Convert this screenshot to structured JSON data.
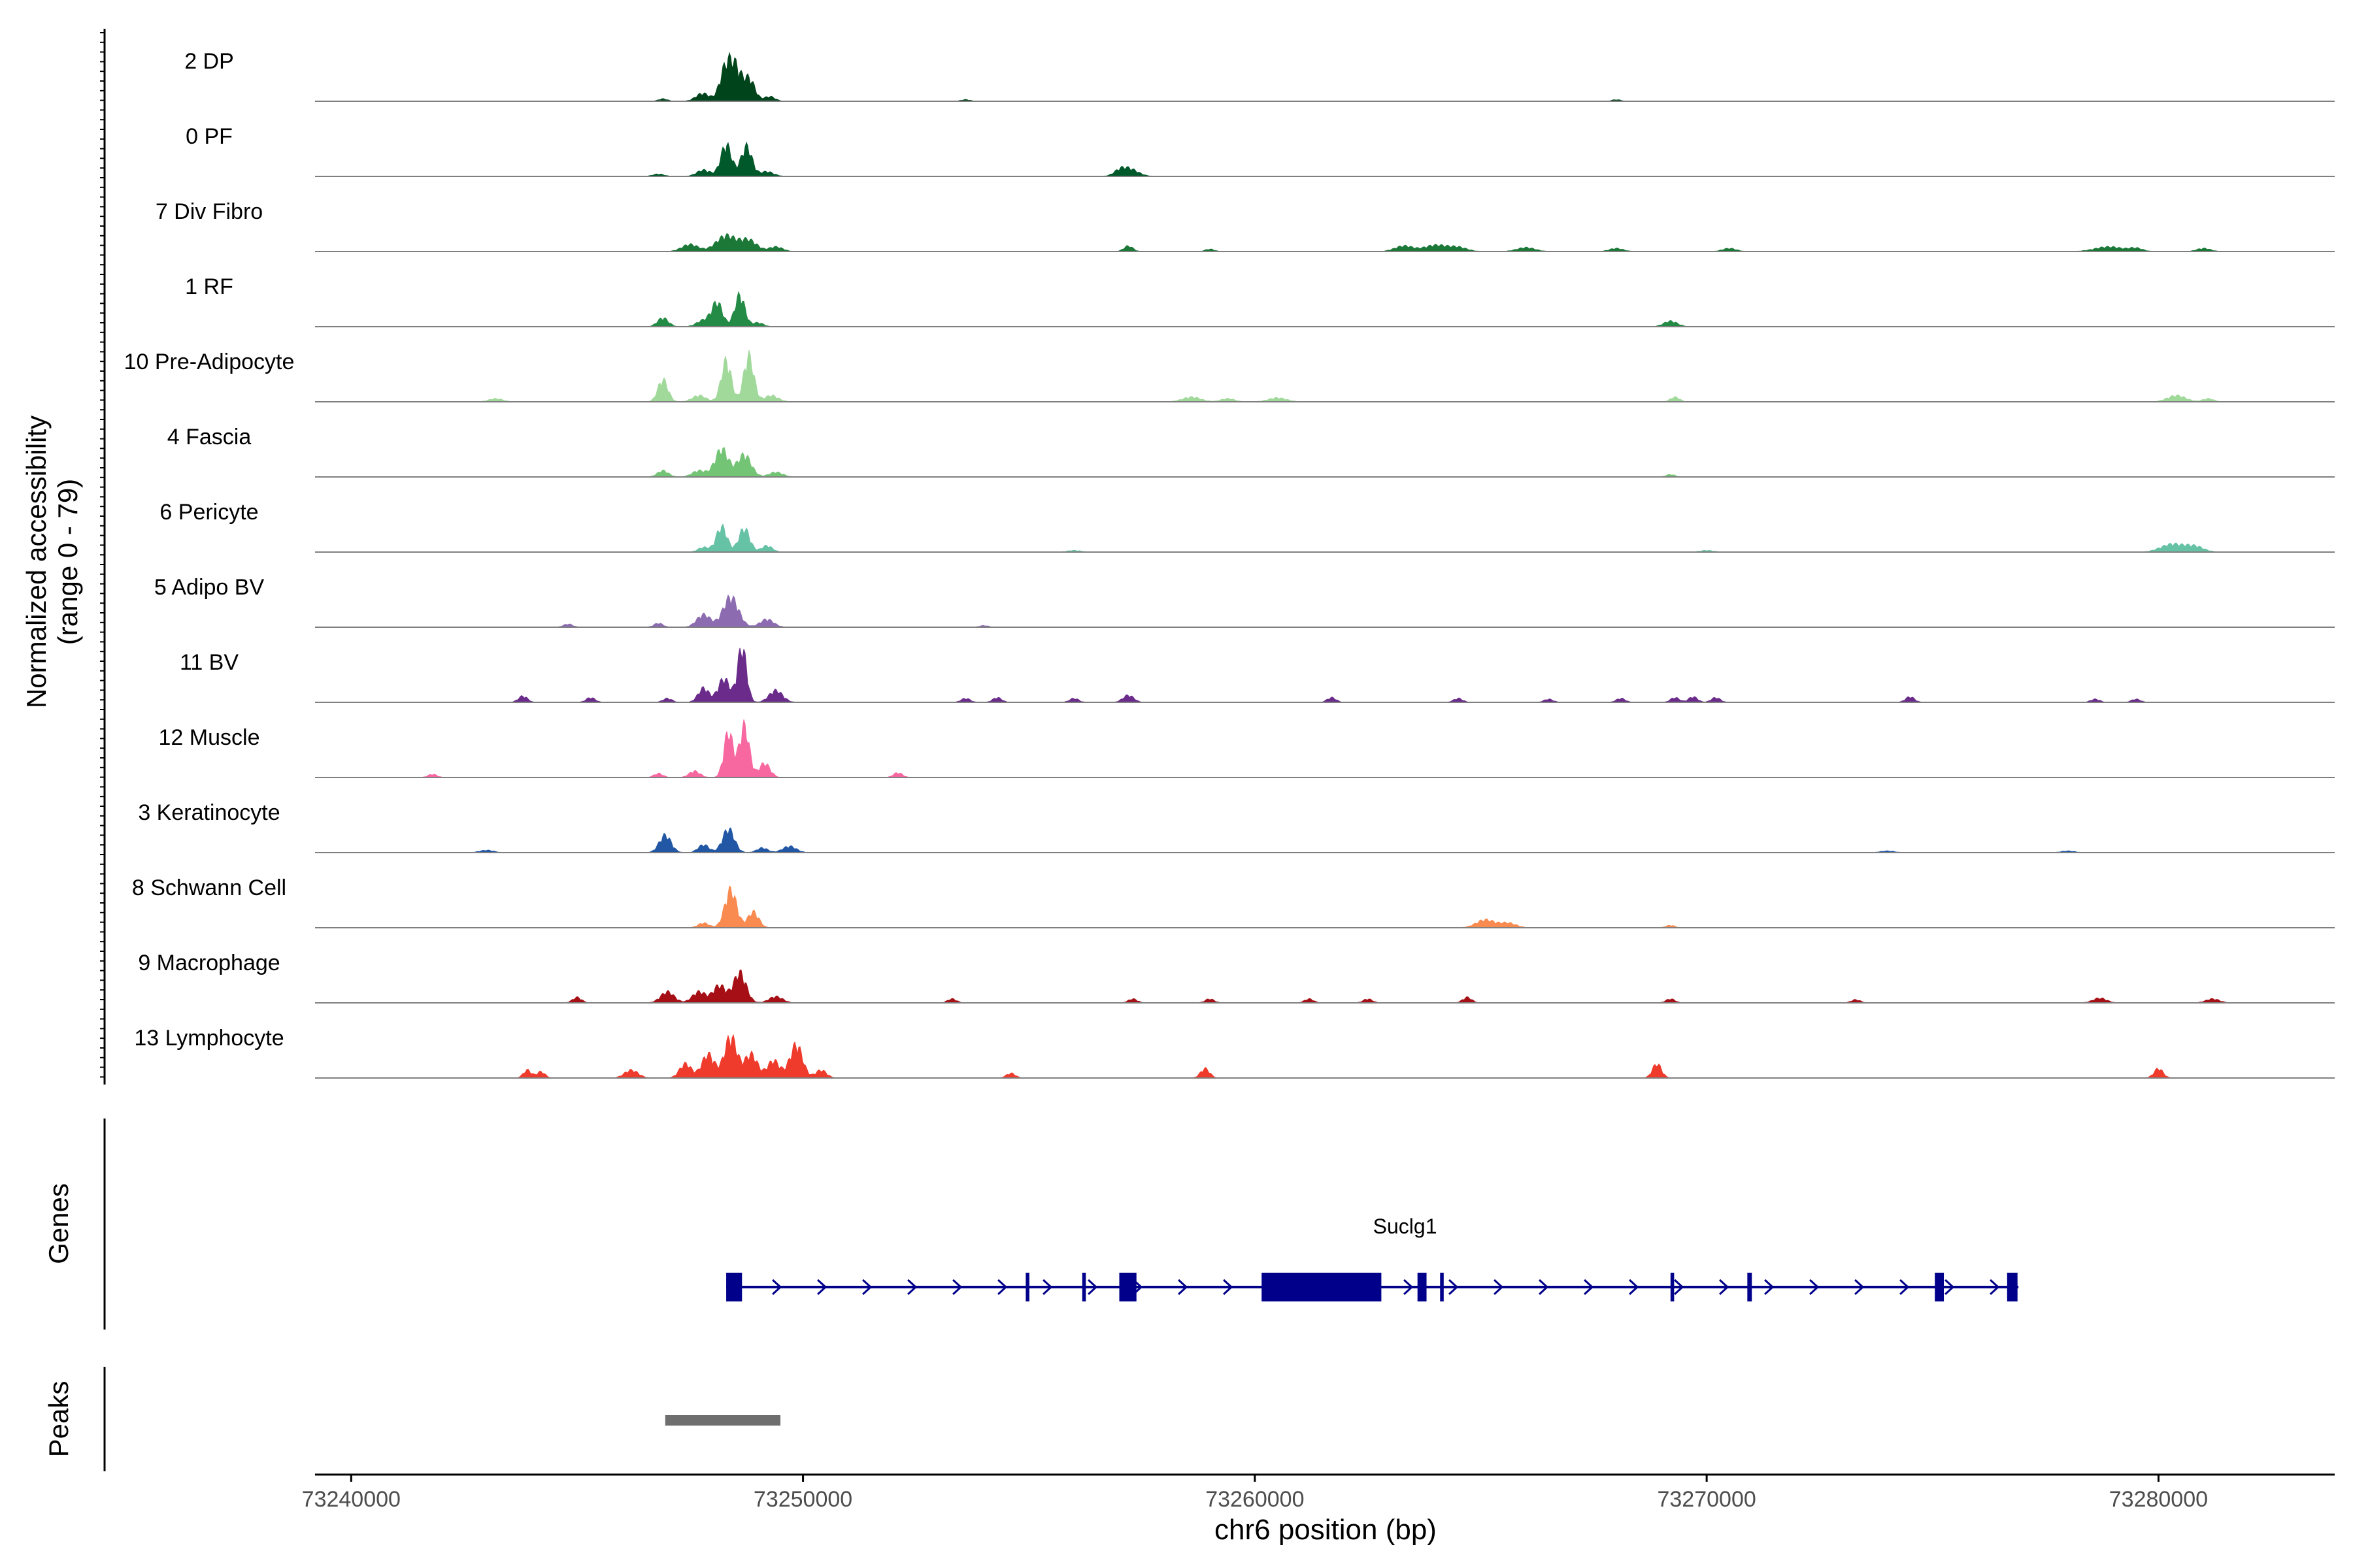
{
  "chart_data": {
    "type": "area",
    "panels": {
      "coverage": {
        "ylabel_line1": "Normalized accessibility",
        "ylabel_line2": "(range 0 - 79)",
        "ylim": [
          0,
          79
        ]
      },
      "genes": {
        "ylabel": "Genes"
      },
      "peaks": {
        "ylabel": "Peaks"
      }
    },
    "xlabel": "chr6 position (bp)",
    "xlim": [
      73239200,
      73283900
    ],
    "x_ticks": [
      73240000,
      73250000,
      73260000,
      73270000,
      73280000
    ],
    "x_tick_labels": [
      "73240000",
      "73250000",
      "73260000",
      "73270000",
      "73280000"
    ],
    "series": [
      {
        "name": "2 DP",
        "color": "#00441b",
        "peaks": [
          [
            73248480,
            45,
            150
          ],
          [
            73248260,
            30,
            120
          ],
          [
            73248820,
            26,
            120
          ],
          [
            73247780,
            10,
            150
          ],
          [
            73249260,
            6,
            120
          ],
          [
            73246900,
            3,
            100
          ],
          [
            73253600,
            2,
            100
          ],
          [
            73268000,
            2,
            100
          ]
        ]
      },
      {
        "name": "0 PF",
        "color": "#00592a",
        "peaks": [
          [
            73248300,
            40,
            120
          ],
          [
            73248750,
            38,
            120
          ],
          [
            73247800,
            8,
            150
          ],
          [
            73249200,
            6,
            150
          ],
          [
            73246800,
            3,
            120
          ],
          [
            73257200,
            10,
            200
          ],
          [
            73257000,
            4,
            120
          ]
        ]
      },
      {
        "name": "7 Div Fibro",
        "color": "#1b7837",
        "peaks": [
          [
            73248300,
            20,
            220
          ],
          [
            73248800,
            14,
            180
          ],
          [
            73247500,
            9,
            180
          ],
          [
            73249400,
            6,
            150
          ],
          [
            73257200,
            7,
            100
          ],
          [
            73259000,
            3,
            100
          ],
          [
            73263300,
            7,
            200
          ],
          [
            73264000,
            8,
            250
          ],
          [
            73264500,
            5,
            200
          ],
          [
            73266000,
            5,
            200
          ],
          [
            73268000,
            4,
            150
          ],
          [
            73270500,
            4,
            150
          ],
          [
            73278900,
            6,
            300
          ],
          [
            73279500,
            4,
            150
          ],
          [
            73281000,
            4,
            150
          ]
        ]
      },
      {
        "name": "1 RF",
        "color": "#238b45",
        "peaks": [
          [
            73248100,
            30,
            120
          ],
          [
            73248600,
            40,
            110
          ],
          [
            73246900,
            11,
            120
          ],
          [
            73247800,
            8,
            150
          ],
          [
            73249000,
            5,
            120
          ],
          [
            73269200,
            7,
            150
          ]
        ]
      },
      {
        "name": "10 Pre-Adipocyte",
        "color": "#a1d99b",
        "peaks": [
          [
            73248300,
            52,
            110
          ],
          [
            73248800,
            58,
            110
          ],
          [
            73246900,
            28,
            110
          ],
          [
            73247700,
            8,
            150
          ],
          [
            73249300,
            8,
            150
          ],
          [
            73243200,
            4,
            150
          ],
          [
            73258600,
            6,
            200
          ],
          [
            73259400,
            4,
            150
          ],
          [
            73260500,
            5,
            200
          ],
          [
            73269300,
            6,
            100
          ],
          [
            73280400,
            8,
            200
          ],
          [
            73281100,
            4,
            120
          ]
        ]
      },
      {
        "name": "4 Fascia",
        "color": "#74c476",
        "peaks": [
          [
            73248200,
            35,
            150
          ],
          [
            73248700,
            28,
            150
          ],
          [
            73246900,
            8,
            120
          ],
          [
            73247700,
            8,
            150
          ],
          [
            73249400,
            6,
            150
          ],
          [
            73269200,
            3,
            100
          ]
        ]
      },
      {
        "name": "6 Pericyte",
        "color": "#66c2a4",
        "peaks": [
          [
            73248200,
            32,
            120
          ],
          [
            73248700,
            30,
            120
          ],
          [
            73249200,
            8,
            120
          ],
          [
            73247800,
            6,
            120
          ],
          [
            73280300,
            10,
            250
          ],
          [
            73280800,
            7,
            200
          ],
          [
            73256000,
            2,
            150
          ],
          [
            73270000,
            2,
            150
          ]
        ]
      },
      {
        "name": "5 Adipo BV",
        "color": "#8c6bb1",
        "peaks": [
          [
            73248400,
            38,
            170
          ],
          [
            73247800,
            16,
            150
          ],
          [
            73249200,
            10,
            150
          ],
          [
            73246800,
            5,
            100
          ],
          [
            73244800,
            4,
            100
          ],
          [
            73254000,
            2,
            100
          ]
        ]
      },
      {
        "name": "11 BV",
        "color": "#6a2b8a",
        "peaks": [
          [
            73248650,
            70,
            100
          ],
          [
            73248250,
            30,
            130
          ],
          [
            73247800,
            18,
            120
          ],
          [
            73249400,
            15,
            150
          ],
          [
            73247000,
            5,
            100
          ],
          [
            73243800,
            8,
            100
          ],
          [
            73245300,
            6,
            100
          ],
          [
            73253600,
            5,
            100
          ],
          [
            73254300,
            6,
            100
          ],
          [
            73256000,
            5,
            100
          ],
          [
            73257200,
            9,
            120
          ],
          [
            73261700,
            6,
            100
          ],
          [
            73264500,
            5,
            100
          ],
          [
            73266500,
            4,
            100
          ],
          [
            73268100,
            5,
            100
          ],
          [
            73269300,
            6,
            100
          ],
          [
            73269700,
            7,
            100
          ],
          [
            73270200,
            6,
            100
          ],
          [
            73274500,
            7,
            100
          ],
          [
            73278600,
            4,
            100
          ],
          [
            73279500,
            4,
            100
          ]
        ]
      },
      {
        "name": "12 Muscle",
        "color": "#f768a1",
        "peaks": [
          [
            73248350,
            58,
            100
          ],
          [
            73248700,
            65,
            110
          ],
          [
            73249150,
            18,
            120
          ],
          [
            73247600,
            8,
            120
          ],
          [
            73252100,
            6,
            100
          ],
          [
            73241800,
            4,
            100
          ],
          [
            73246800,
            5,
            100
          ]
        ]
      },
      {
        "name": "3 Keratinocyte",
        "color": "#2157a5",
        "peaks": [
          [
            73246950,
            22,
            130
          ],
          [
            73248350,
            30,
            130
          ],
          [
            73247800,
            10,
            120
          ],
          [
            73249700,
            8,
            150
          ],
          [
            73249100,
            6,
            120
          ],
          [
            73243000,
            3,
            150
          ],
          [
            73274000,
            2,
            150
          ],
          [
            73278000,
            2,
            150
          ]
        ]
      },
      {
        "name": "8 Schwann Cell",
        "color": "#f98a50",
        "peaks": [
          [
            73248400,
            48,
            130
          ],
          [
            73248900,
            20,
            120
          ],
          [
            73247800,
            6,
            120
          ],
          [
            73265100,
            10,
            200
          ],
          [
            73265600,
            6,
            180
          ],
          [
            73269200,
            3,
            100
          ]
        ]
      },
      {
        "name": "9 Macrophage",
        "color": "#a50f15",
        "peaks": [
          [
            73248600,
            38,
            140
          ],
          [
            73248150,
            22,
            140
          ],
          [
            73247700,
            14,
            150
          ],
          [
            73247000,
            14,
            150
          ],
          [
            73249400,
            8,
            150
          ],
          [
            73245000,
            7,
            100
          ],
          [
            73253300,
            5,
            100
          ],
          [
            73257300,
            5,
            100
          ],
          [
            73259000,
            5,
            100
          ],
          [
            73261200,
            5,
            100
          ],
          [
            73262500,
            5,
            100
          ],
          [
            73264700,
            7,
            100
          ],
          [
            73269200,
            5,
            100
          ],
          [
            73273300,
            4,
            100
          ],
          [
            73278700,
            6,
            150
          ],
          [
            73281200,
            5,
            150
          ]
        ]
      },
      {
        "name": "13 Lymphocyte",
        "color": "#ef3b2c",
        "peaks": [
          [
            73248400,
            52,
            140
          ],
          [
            73247900,
            30,
            140
          ],
          [
            73248850,
            30,
            140
          ],
          [
            73249850,
            42,
            140
          ],
          [
            73249350,
            22,
            140
          ],
          [
            73247400,
            18,
            130
          ],
          [
            73250400,
            10,
            120
          ],
          [
            73246200,
            10,
            150
          ],
          [
            73243900,
            10,
            90
          ],
          [
            73244200,
            8,
            90
          ],
          [
            73254600,
            6,
            100
          ],
          [
            73258900,
            12,
            100
          ],
          [
            73268900,
            18,
            100
          ],
          [
            73280000,
            12,
            100
          ]
        ]
      }
    ],
    "genes": [
      {
        "name": "Suclg1",
        "strand": "+",
        "start": 73248300,
        "end": 73276900,
        "exons": [
          [
            73248300,
            73248650
          ],
          [
            73254930,
            73255010
          ],
          [
            73256180,
            73256260
          ],
          [
            73257000,
            73257380
          ],
          [
            73260150,
            73262800
          ],
          [
            73263600,
            73263800
          ],
          [
            73264100,
            73264180
          ],
          [
            73269200,
            73269280
          ],
          [
            73270900,
            73271000
          ],
          [
            73275050,
            73275250
          ],
          [
            73276650,
            73276880
          ]
        ]
      }
    ],
    "peaks": [
      [
        73246950,
        73249500
      ]
    ]
  }
}
